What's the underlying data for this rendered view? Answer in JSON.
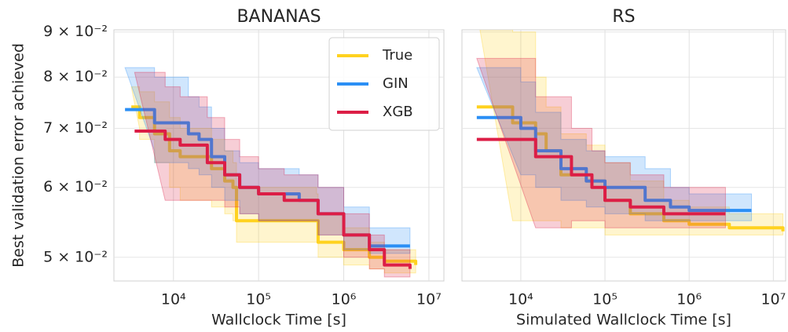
{
  "chart_data": [
    {
      "type": "line",
      "title": "BANANAS",
      "xlabel": "Wallclock Time [s]",
      "ylabel": "Best validation error achieved",
      "xscale": "log",
      "yscale": "log",
      "drawstyle": "steps-post",
      "grid": true,
      "legend": "upper right",
      "xlim": [
        2000,
        15000000
      ],
      "ylim": [
        0.047,
        0.0905
      ],
      "xticks": [
        {
          "value": 10000,
          "label": "10⁴"
        },
        {
          "value": 100000,
          "label": "10⁵"
        },
        {
          "value": 1000000,
          "label": "10⁶"
        },
        {
          "value": 10000000,
          "label": "10⁷"
        }
      ],
      "yticks": [
        {
          "value": 0.05,
          "label": "5 × 10⁻²"
        },
        {
          "value": 0.06,
          "label": "6 × 10⁻²"
        },
        {
          "value": 0.07,
          "label": "7 × 10⁻²"
        },
        {
          "value": 0.08,
          "label": "8 × 10⁻²"
        },
        {
          "value": 0.09,
          "label": "9 × 10⁻²"
        }
      ],
      "series": [
        {
          "name": "True",
          "color": "#ffd21f",
          "x": [
            3200,
            4000,
            6000,
            9000,
            12000,
            28000,
            40000,
            50000,
            55000,
            480000,
            500000,
            1000000,
            2000000,
            3000000,
            7000000
          ],
          "values": [
            0.074,
            0.072,
            0.069,
            0.066,
            0.065,
            0.063,
            0.061,
            0.06,
            0.055,
            0.055,
            0.052,
            0.051,
            0.05,
            0.0495,
            0.049
          ],
          "lower": [
            0.07,
            0.068,
            0.064,
            0.06,
            0.058,
            0.057,
            0.056,
            0.055,
            0.052,
            0.052,
            0.05,
            0.049,
            0.0485,
            0.048,
            0.048
          ],
          "upper": [
            0.078,
            0.077,
            0.075,
            0.072,
            0.07,
            0.068,
            0.066,
            0.064,
            0.06,
            0.059,
            0.056,
            0.054,
            0.052,
            0.051,
            0.0505
          ]
        },
        {
          "name": "GIN",
          "color": "#2b8ff5",
          "x": [
            2700,
            6000,
            15000,
            20000,
            28000,
            40000,
            60000,
            100000,
            300000,
            500000,
            1000000,
            2000000,
            6000000
          ],
          "values": [
            0.0735,
            0.071,
            0.069,
            0.068,
            0.065,
            0.062,
            0.06,
            0.059,
            0.058,
            0.056,
            0.053,
            0.0515,
            0.0515
          ],
          "lower": [
            0.066,
            0.064,
            0.063,
            0.062,
            0.06,
            0.058,
            0.056,
            0.055,
            0.055,
            0.053,
            0.051,
            0.0505,
            0.0505
          ],
          "upper": [
            0.082,
            0.08,
            0.076,
            0.074,
            0.07,
            0.066,
            0.064,
            0.063,
            0.062,
            0.06,
            0.057,
            0.054,
            0.053
          ]
        },
        {
          "name": "XGB",
          "color": "#dc1e46",
          "x": [
            3500,
            8000,
            12000,
            25000,
            40000,
            60000,
            100000,
            200000,
            500000,
            1000000,
            2000000,
            3000000,
            6000000
          ],
          "values": [
            0.0695,
            0.068,
            0.067,
            0.064,
            0.062,
            0.06,
            0.059,
            0.058,
            0.056,
            0.053,
            0.051,
            0.049,
            0.0485
          ],
          "lower": [
            0.058,
            0.058,
            0.058,
            0.058,
            0.057,
            0.056,
            0.055,
            0.055,
            0.053,
            0.05,
            0.0485,
            0.0475,
            0.0475
          ],
          "upper": [
            0.081,
            0.078,
            0.076,
            0.072,
            0.068,
            0.065,
            0.063,
            0.062,
            0.06,
            0.056,
            0.053,
            0.051,
            0.05
          ]
        }
      ]
    },
    {
      "type": "line",
      "title": "RS",
      "xlabel": "Simulated Wallclock Time [s]",
      "xscale": "log",
      "yscale": "log",
      "drawstyle": "steps-post",
      "grid": true,
      "sharey": true,
      "xlim": [
        2000,
        14000000
      ],
      "ylim": [
        0.047,
        0.0905
      ],
      "xticks": [
        {
          "value": 10000,
          "label": "10⁴"
        },
        {
          "value": 100000,
          "label": "10⁵"
        },
        {
          "value": 1000000,
          "label": "10⁶"
        },
        {
          "value": 10000000,
          "label": "10⁷"
        }
      ],
      "series": [
        {
          "color": "#ffd21f",
          "x": [
            3000,
            8000,
            15000,
            20000,
            30000,
            60000,
            100000,
            200000,
            500000,
            1000000,
            3000000,
            13000000
          ],
          "values": [
            0.074,
            0.071,
            0.069,
            0.066,
            0.062,
            0.061,
            0.058,
            0.056,
            0.055,
            0.0545,
            0.054,
            0.0535
          ],
          "lower": [
            0.055,
            0.055,
            0.055,
            0.055,
            0.054,
            0.054,
            0.053,
            0.053,
            0.053,
            0.053,
            0.053,
            0.053
          ],
          "upper": [
            0.095,
            0.09,
            0.08,
            0.074,
            0.069,
            0.067,
            0.064,
            0.061,
            0.058,
            0.057,
            0.056,
            0.0545
          ]
        },
        {
          "color": "#2b8ff5",
          "x": [
            3000,
            10000,
            15000,
            30000,
            60000,
            100000,
            300000,
            600000,
            1000000,
            5500000
          ],
          "values": [
            0.072,
            0.07,
            0.066,
            0.063,
            0.061,
            0.06,
            0.058,
            0.057,
            0.0565,
            0.0565
          ],
          "lower": [
            0.062,
            0.062,
            0.06,
            0.058,
            0.057,
            0.056,
            0.055,
            0.055,
            0.055,
            0.055
          ],
          "upper": [
            0.082,
            0.079,
            0.073,
            0.068,
            0.066,
            0.065,
            0.063,
            0.06,
            0.059,
            0.058
          ]
        },
        {
          "color": "#dc1e46",
          "x": [
            3000,
            15000,
            40000,
            70000,
            100000,
            200000,
            500000,
            2700000
          ],
          "values": [
            0.068,
            0.065,
            0.062,
            0.06,
            0.058,
            0.057,
            0.056,
            0.056
          ],
          "lower": [
            0.054,
            0.054,
            0.055,
            0.055,
            0.054,
            0.054,
            0.054,
            0.054
          ],
          "upper": [
            0.084,
            0.076,
            0.07,
            0.066,
            0.064,
            0.062,
            0.06,
            0.059
          ]
        }
      ]
    }
  ]
}
